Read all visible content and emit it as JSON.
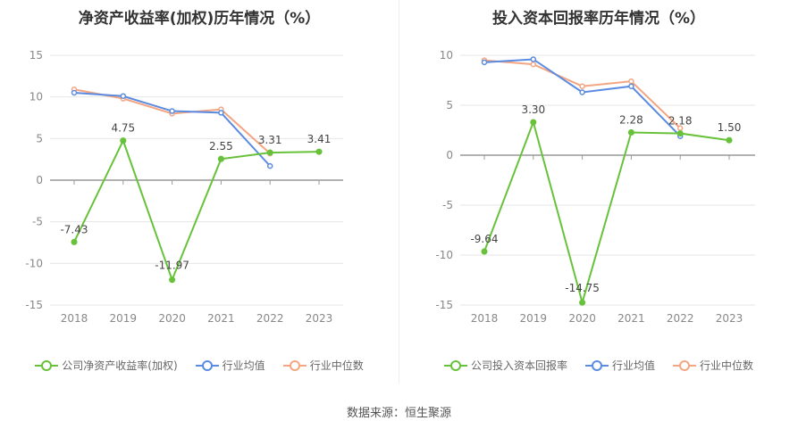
{
  "chart_data": [
    {
      "type": "line",
      "title": "净资产收益率(加权)历年情况（%）",
      "categories": [
        "2018",
        "2019",
        "2020",
        "2021",
        "2022",
        "2023"
      ],
      "ylim": [
        -15,
        15
      ],
      "yticks": [
        15,
        10,
        5,
        0,
        -5,
        -10,
        -15
      ],
      "series": [
        {
          "name": "公司净资产收益率(加权)",
          "color": "#67c23a",
          "values": [
            -7.43,
            4.75,
            -11.97,
            2.55,
            3.31,
            3.41
          ],
          "labels": [
            "-7.43",
            "4.75",
            "-11.97",
            "2.55",
            "3.31",
            "3.41"
          ]
        },
        {
          "name": "行业均值",
          "color": "#5b8be0",
          "values": [
            10.5,
            10.1,
            8.3,
            8.1,
            1.7,
            null
          ]
        },
        {
          "name": "行业中位数",
          "color": "#f4a582",
          "values": [
            10.9,
            9.8,
            8.0,
            8.5,
            3.2,
            null
          ]
        }
      ],
      "legend_position": "bottom",
      "grid": true
    },
    {
      "type": "line",
      "title": "投入资本回报率历年情况（%）",
      "categories": [
        "2018",
        "2019",
        "2020",
        "2021",
        "2022",
        "2023"
      ],
      "ylim": [
        -15,
        10
      ],
      "yticks": [
        10,
        5,
        0,
        -5,
        -10,
        -15
      ],
      "series": [
        {
          "name": "公司投入资本回报率",
          "color": "#67c23a",
          "values": [
            -9.64,
            3.3,
            -14.75,
            2.28,
            2.18,
            1.5
          ],
          "labels": [
            "-9.64",
            "3.30",
            "-14.75",
            "2.28",
            "2.18",
            "1.50"
          ]
        },
        {
          "name": "行业均值",
          "color": "#5b8be0",
          "values": [
            9.3,
            9.6,
            6.3,
            6.9,
            1.9,
            null
          ]
        },
        {
          "name": "行业中位数",
          "color": "#f4a582",
          "values": [
            9.5,
            9.1,
            6.9,
            7.4,
            2.7,
            null
          ]
        }
      ],
      "legend_position": "bottom",
      "grid": true
    }
  ],
  "source_text": "数据来源：恒生聚源"
}
